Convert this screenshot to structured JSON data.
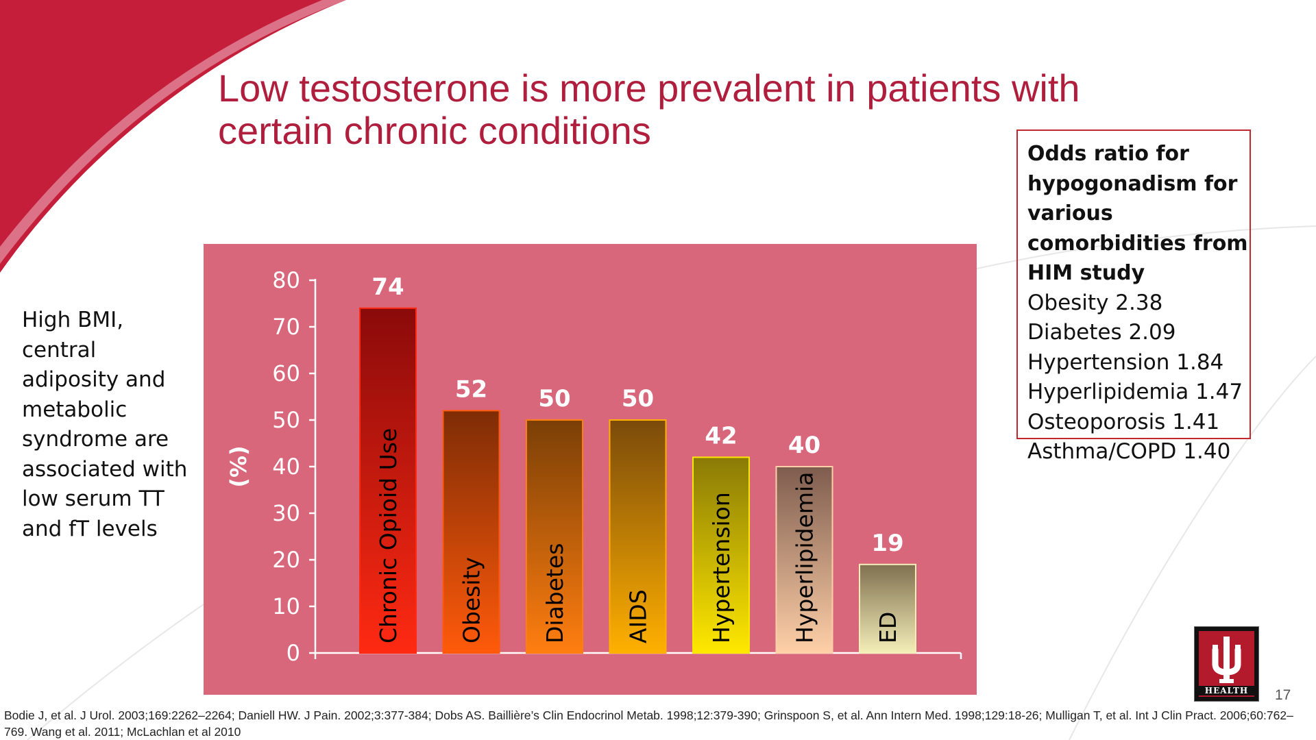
{
  "slide": {
    "title": "Low testosterone is more prevalent in patients with certain chronic conditions",
    "left_text": "High BMI, central adiposity and metabolic syndrome are associated with low serum TT and fT levels",
    "page_number": "17",
    "references": "Bodie J, et al. J Urol. 2003;169:2262–2264; Daniell HW. J Pain. 2002;3:377-384; Dobs AS. Baillière’s Clin Endocrinol Metab. 1998;12:379-390; Grinspoon S, et al. Ann Intern Med. 1998;129:18-26; Mulligan T, et al. Int J Clin Pract. 2006;60:762–769.  Wang et al. 2011; McLachlan et al 2010",
    "logo_text": "HEALTH",
    "logo_icon": "trident-icon"
  },
  "odds_box": {
    "heading": "Odds ratio for hypogonadism for various comorbidities from HIM study",
    "items": [
      "Obesity 2.38",
      "Diabetes 2.09",
      "Hypertension 1.84",
      "Hyperlipidemia 1.47",
      "Osteoporosis 1.41",
      "Asthma/COPD 1.40"
    ]
  },
  "colors": {
    "title": "#b01e3d",
    "panel": "#d8677b",
    "box_border": "#c4262e",
    "swoosh": "#c41e3a"
  },
  "chart_data": {
    "type": "bar",
    "title": "",
    "ylabel": "(%)",
    "xlabel": "",
    "ylim": [
      0,
      80
    ],
    "yticks": [
      0,
      10,
      20,
      30,
      40,
      50,
      60,
      70,
      80
    ],
    "categories": [
      "Chronic Opioid Use",
      "Obesity",
      "Diabetes",
      "AIDS",
      "Hypertension",
      "Hyperlipidemia",
      "ED"
    ],
    "values": [
      74,
      52,
      50,
      50,
      42,
      40,
      19
    ],
    "bar_colors": [
      [
        "#8a0a0a",
        "#ff2a12"
      ],
      [
        "#7e2c06",
        "#ff5a0a"
      ],
      [
        "#7a3f06",
        "#ff7e10"
      ],
      [
        "#7a4a0a",
        "#ffb000"
      ],
      [
        "#8a7a06",
        "#ffe800"
      ],
      [
        "#7e5c4e",
        "#ffd0a8"
      ],
      [
        "#807050",
        "#f4eeb8"
      ]
    ]
  }
}
